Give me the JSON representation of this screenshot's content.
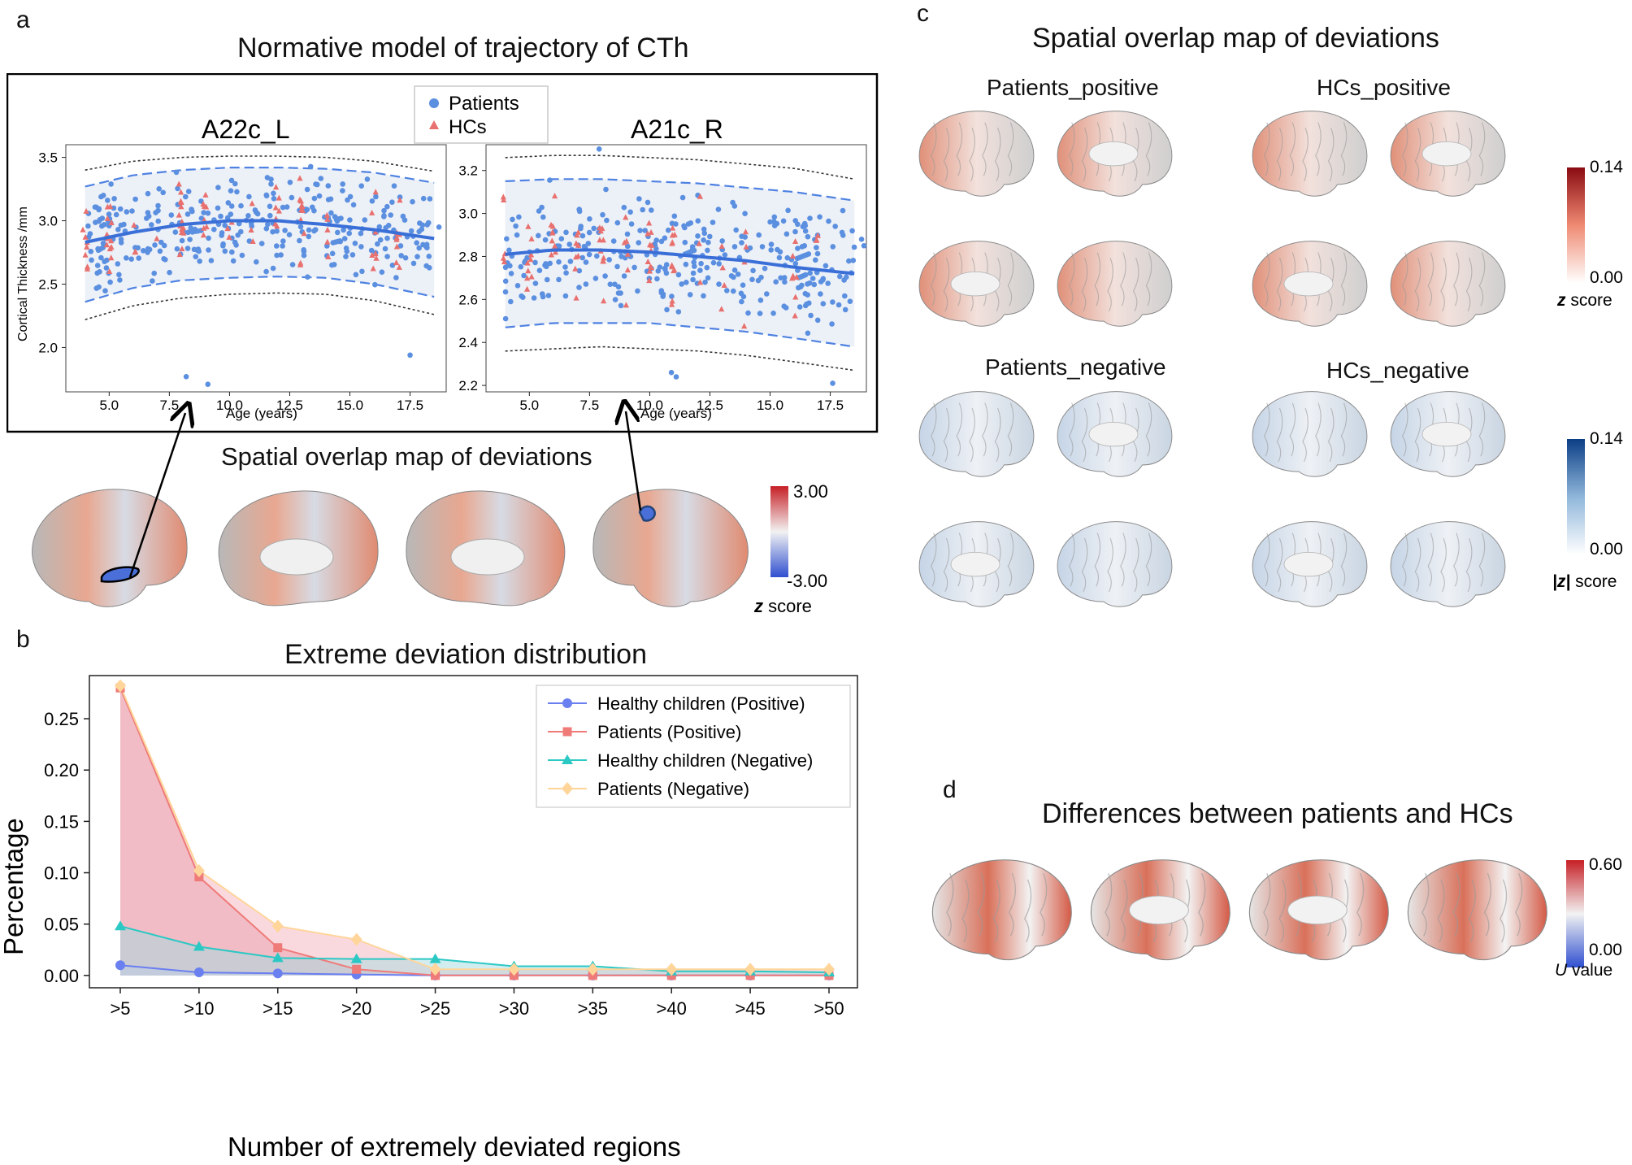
{
  "panels": {
    "a": "a",
    "b": "b",
    "c": "c",
    "d": "d"
  },
  "panel_a": {
    "title": "Normative model of trajectory of CTh",
    "legend": {
      "patients": "Patients",
      "hcs": "HCs"
    },
    "left_plot": {
      "title": "A22c_L"
    },
    "right_plot": {
      "title": "A21c_R"
    },
    "map_title": "Spatial overlap map of deviations",
    "colorbar": {
      "max": "3.00",
      "min": "-3.00",
      "label_z": "z",
      "label_rest": " score"
    }
  },
  "panel_c": {
    "title": "Spatial overlap map of deviations",
    "groups": [
      "Patients_positive",
      "HCs_positive",
      "Patients_negative",
      "HCs_negative"
    ],
    "colorbar_pos": {
      "max": "0.14",
      "min": "0.00",
      "label_z": "z",
      "label_rest": " score"
    },
    "colorbar_neg": {
      "max": "0.14",
      "min": "0.00",
      "label_z": "|z|",
      "label_rest": " score"
    }
  },
  "panel_d": {
    "title": "Differences between patients and HCs",
    "colorbar": {
      "max": "0.60",
      "min": "0.00",
      "label_u": "U",
      "label_rest": " value"
    }
  },
  "colors": {
    "patients_blue": "#5b8fe0",
    "hcs_red": "#e8706e",
    "healthy_pos": "#6a7ff0",
    "patients_pos": "#ef7b79",
    "healthy_neg": "#2cc8c4",
    "patients_neg": "#ffd59a"
  },
  "chart_data": [
    {
      "type": "scatter",
      "title": "A22c_L",
      "xlabel": "Age (years)",
      "ylabel": "Cortical Thickness /mm",
      "xlim": [
        3.2,
        19
      ],
      "ylim": [
        1.65,
        3.6
      ],
      "xticks": [
        5.0,
        7.5,
        10.0,
        12.5,
        15.0,
        17.5
      ],
      "xtick_labels": [
        "5.0",
        "7.5",
        "10.0",
        "12.5",
        "15.0",
        "17.5"
      ],
      "yticks": [
        2.0,
        2.5,
        3.0,
        3.5
      ],
      "ytick_labels": [
        "2.0",
        "2.5",
        "3.0",
        "3.5"
      ],
      "model": {
        "x": [
          4,
          6,
          8,
          10,
          12,
          14,
          16,
          18.5
        ],
        "mean": [
          2.83,
          2.91,
          2.97,
          3.0,
          3.0,
          2.97,
          2.93,
          2.86
        ],
        "inner_upper": [
          3.27,
          3.36,
          3.4,
          3.42,
          3.42,
          3.41,
          3.38,
          3.3
        ],
        "inner_lower": [
          2.36,
          2.47,
          2.53,
          2.55,
          2.56,
          2.55,
          2.5,
          2.4
        ],
        "outer_upper": [
          3.4,
          3.47,
          3.5,
          3.51,
          3.51,
          3.5,
          3.47,
          3.39
        ],
        "outer_lower": [
          2.22,
          2.33,
          2.39,
          2.42,
          2.43,
          2.42,
          2.37,
          2.26
        ]
      },
      "extreme_points": {
        "x": [
          8.2,
          9.1,
          17.5,
          18.7
        ],
        "y": [
          1.77,
          1.71,
          1.94,
          2.95
        ]
      }
    },
    {
      "type": "scatter",
      "title": "A21c_R",
      "xlabel": "Age (years)",
      "ylabel": "",
      "xlim": [
        3.2,
        19
      ],
      "ylim": [
        2.17,
        3.32
      ],
      "xticks": [
        5.0,
        7.5,
        10.0,
        12.5,
        15.0,
        17.5
      ],
      "xtick_labels": [
        "5.0",
        "7.5",
        "10.0",
        "12.5",
        "15.0",
        "17.5"
      ],
      "yticks": [
        2.2,
        2.4,
        2.6,
        2.8,
        3.0,
        3.2
      ],
      "ytick_labels": [
        "2.2",
        "2.4",
        "2.6",
        "2.8",
        "3.0",
        "3.2"
      ],
      "model": {
        "x": [
          4,
          6,
          8,
          10,
          12,
          14,
          16,
          18.5
        ],
        "mean": [
          2.81,
          2.83,
          2.83,
          2.82,
          2.8,
          2.78,
          2.75,
          2.72
        ],
        "inner_upper": [
          3.15,
          3.16,
          3.16,
          3.15,
          3.14,
          3.12,
          3.1,
          3.06
        ],
        "inner_lower": [
          2.47,
          2.49,
          2.49,
          2.49,
          2.47,
          2.45,
          2.42,
          2.38
        ],
        "outer_upper": [
          3.26,
          3.27,
          3.27,
          3.26,
          3.25,
          3.23,
          3.21,
          3.16
        ],
        "outer_lower": [
          2.36,
          2.37,
          2.38,
          2.37,
          2.36,
          2.34,
          2.31,
          2.27
        ]
      },
      "extreme_points": {
        "x": [
          7.9,
          10.9,
          11.1,
          17.6,
          18.8,
          18.9
        ],
        "y": [
          3.3,
          2.26,
          2.24,
          2.21,
          2.88,
          2.85
        ]
      }
    },
    {
      "type": "line",
      "title": "Extreme deviation distribution",
      "xlabel": "Number of extremely deviated regions",
      "ylabel": "Percentage",
      "categories": [
        ">5",
        ">10",
        ">15",
        ">20",
        ">25",
        ">30",
        ">35",
        ">40",
        ">45",
        ">50"
      ],
      "yticks": [
        0.0,
        0.05,
        0.1,
        0.15,
        0.2,
        0.25
      ],
      "ytick_labels": [
        "0.00",
        "0.05",
        "0.10",
        "0.15",
        "0.20",
        "0.25"
      ],
      "ylim": [
        -0.012,
        0.292
      ],
      "legend_position": "top-right",
      "series": [
        {
          "name": "Healthy children (Positive)",
          "marker": "circle",
          "values": [
            0.01,
            0.003,
            0.002,
            0.001,
            0.0,
            0.0,
            0.0,
            0.0,
            0.0,
            0.0
          ]
        },
        {
          "name": "Patients (Positive)",
          "marker": "square",
          "values": [
            0.28,
            0.096,
            0.027,
            0.006,
            0.0,
            0.0,
            0.0,
            0.0,
            0.0,
            0.0
          ]
        },
        {
          "name": "Healthy children (Negative)",
          "marker": "triangle",
          "values": [
            0.048,
            0.028,
            0.017,
            0.016,
            0.016,
            0.009,
            0.009,
            0.004,
            0.004,
            0.003
          ]
        },
        {
          "name": "Patients (Negative)",
          "marker": "diamond",
          "values": [
            0.282,
            0.102,
            0.048,
            0.035,
            0.006,
            0.006,
            0.006,
            0.006,
            0.006,
            0.006
          ]
        }
      ]
    }
  ]
}
